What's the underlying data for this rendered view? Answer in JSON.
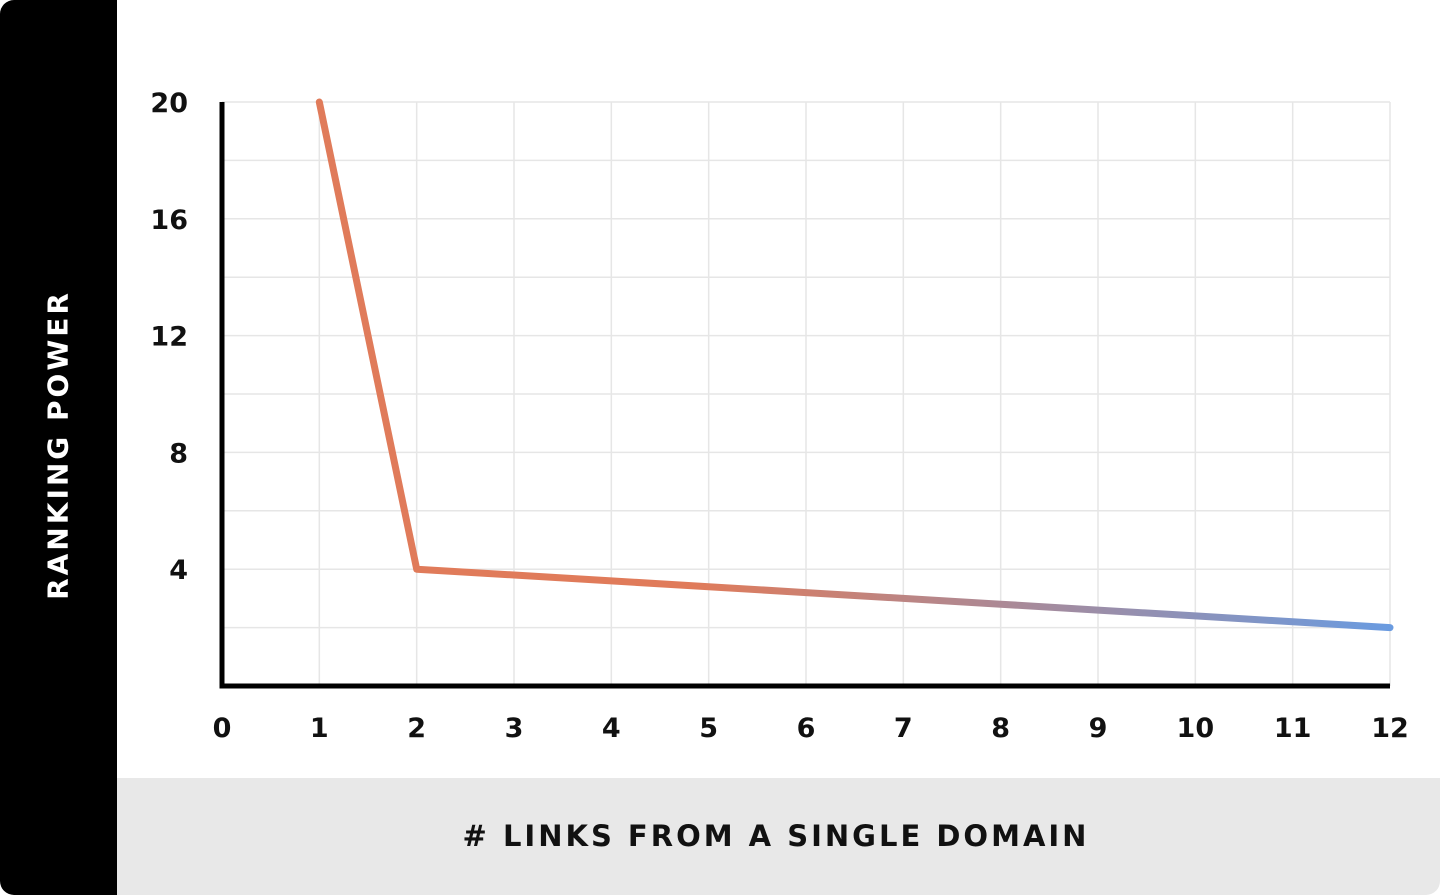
{
  "chart_data": {
    "type": "line",
    "title": "",
    "xlabel": "# LINKS FROM A SINGLE DOMAIN",
    "ylabel": "RANKING POWER",
    "xlim": [
      0,
      12
    ],
    "ylim": [
      0,
      20
    ],
    "x_ticks": [
      "0",
      "1",
      "2",
      "3",
      "4",
      "5",
      "6",
      "7",
      "8",
      "9",
      "10",
      "11",
      "12"
    ],
    "y_ticks": [
      "4",
      "8",
      "12",
      "16",
      "20"
    ],
    "x": [
      1,
      2,
      3,
      4,
      5,
      6,
      7,
      8,
      9,
      10,
      11,
      12
    ],
    "values": [
      20,
      4,
      3.8,
      3.6,
      3.4,
      3.2,
      3.0,
      2.8,
      2.6,
      2.4,
      2.2,
      2.0
    ],
    "grid": true,
    "line_gradient": [
      "#e07b5a",
      "#6a9be0"
    ]
  }
}
